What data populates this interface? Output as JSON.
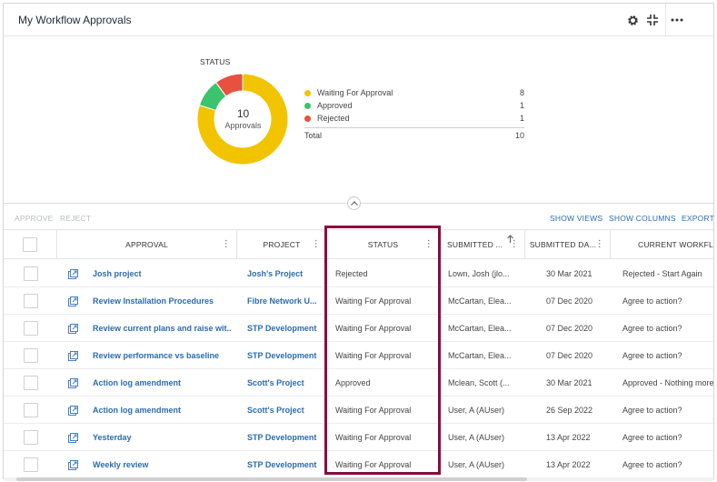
{
  "header": {
    "title": "My Workflow Approvals"
  },
  "chart_data": {
    "type": "pie",
    "title": "STATUS",
    "center_value": "10",
    "center_label": "Approvals",
    "categories": [
      "Waiting For Approval",
      "Approved",
      "Rejected"
    ],
    "values": [
      8,
      1,
      1
    ],
    "colors": [
      "#f2c400",
      "#3cc36e",
      "#e8513f"
    ],
    "total_label": "Total",
    "total": 10,
    "legend_position": "right"
  },
  "toolbar": {
    "approve": "APPROVE",
    "reject": "REJECT",
    "show_views": "SHOW VIEWS",
    "show_columns": "SHOW COLUMNS",
    "export": "EXPORT"
  },
  "columns": {
    "approval": "APPROVAL",
    "project": "PROJECT",
    "status": "STATUS",
    "submitted_by": "SUBMITTED ...",
    "submitted_date": "SUBMITTED DA...",
    "current_workflow": "CURRENT WORKFLOW"
  },
  "rows": [
    {
      "approval": "Josh project",
      "project": "Josh's Project",
      "status": "Rejected",
      "submitted_by": "Lown, Josh (jlo...",
      "date": "30 Mar 2021",
      "workflow": "Rejected - Start Again"
    },
    {
      "approval": "Review Installation Procedures",
      "project": "Fibre Network U...",
      "status": "Waiting For Approval",
      "submitted_by": "McCartan, Elea...",
      "date": "07 Dec 2020",
      "workflow": "Agree to action?"
    },
    {
      "approval": "Review current plans and raise wit...",
      "project": "STP Development",
      "status": "Waiting For Approval",
      "submitted_by": "McCartan, Elea...",
      "date": "07 Dec 2020",
      "workflow": "Agree to action?"
    },
    {
      "approval": "Review performance vs baseline",
      "project": "STP Development",
      "status": "Waiting For Approval",
      "submitted_by": "McCartan, Elea...",
      "date": "07 Dec 2020",
      "workflow": "Agree to action?"
    },
    {
      "approval": "Action log amendment",
      "project": "Scott's Project",
      "status": "Approved",
      "submitted_by": "Mclean, Scott (...",
      "date": "30 Mar 2021",
      "workflow": "Approved - Nothing more"
    },
    {
      "approval": "Action log amendment",
      "project": "Scott's Project",
      "status": "Waiting For Approval",
      "submitted_by": "User, A (AUser)",
      "date": "26 Sep 2022",
      "workflow": "Agree to action?"
    },
    {
      "approval": "Yesterday",
      "project": "STP Development",
      "status": "Waiting For Approval",
      "submitted_by": "User, A (AUser)",
      "date": "13 Apr 2022",
      "workflow": "Agree to action?"
    },
    {
      "approval": "Weekly review",
      "project": "STP Development",
      "status": "Waiting For Approval",
      "submitted_by": "User, A (AUser)",
      "date": "13 Apr 2022",
      "workflow": "Agree to action?"
    }
  ]
}
